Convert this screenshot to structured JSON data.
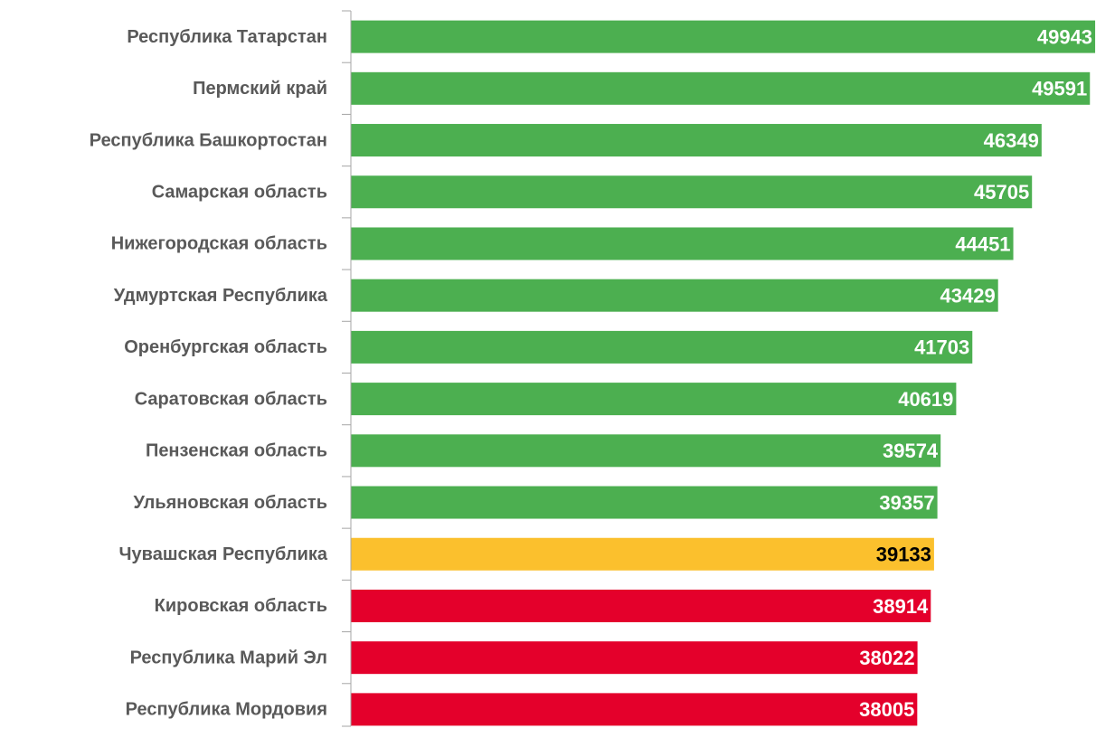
{
  "chart_data": {
    "type": "barh",
    "categories": [
      "Республика Татарстан",
      "Пермский край",
      "Республика Башкортостан",
      "Самарская область",
      "Нижегородская область",
      "Удмуртская Республика",
      "Оренбургская область",
      "Саратовская область",
      "Пензенская область",
      "Ульяновская область",
      "Чувашская Республика",
      "Кировская область",
      "Республика Марий Эл",
      "Республика Мордовия"
    ],
    "values": [
      49943,
      49591,
      46349,
      45705,
      44451,
      43429,
      41703,
      40619,
      39574,
      39357,
      39133,
      38914,
      38022,
      38005
    ],
    "colors": [
      "#4caf50",
      "#4caf50",
      "#4caf50",
      "#4caf50",
      "#4caf50",
      "#4caf50",
      "#4caf50",
      "#4caf50",
      "#4caf50",
      "#4caf50",
      "#fbc02d",
      "#e4002b",
      "#e4002b",
      "#e4002b"
    ],
    "value_label_colors": [
      "#ffffff",
      "#ffffff",
      "#ffffff",
      "#ffffff",
      "#ffffff",
      "#ffffff",
      "#ffffff",
      "#ffffff",
      "#ffffff",
      "#ffffff",
      "#000000",
      "#ffffff",
      "#ffffff",
      "#ffffff"
    ],
    "xlim": [
      0,
      50000
    ]
  }
}
